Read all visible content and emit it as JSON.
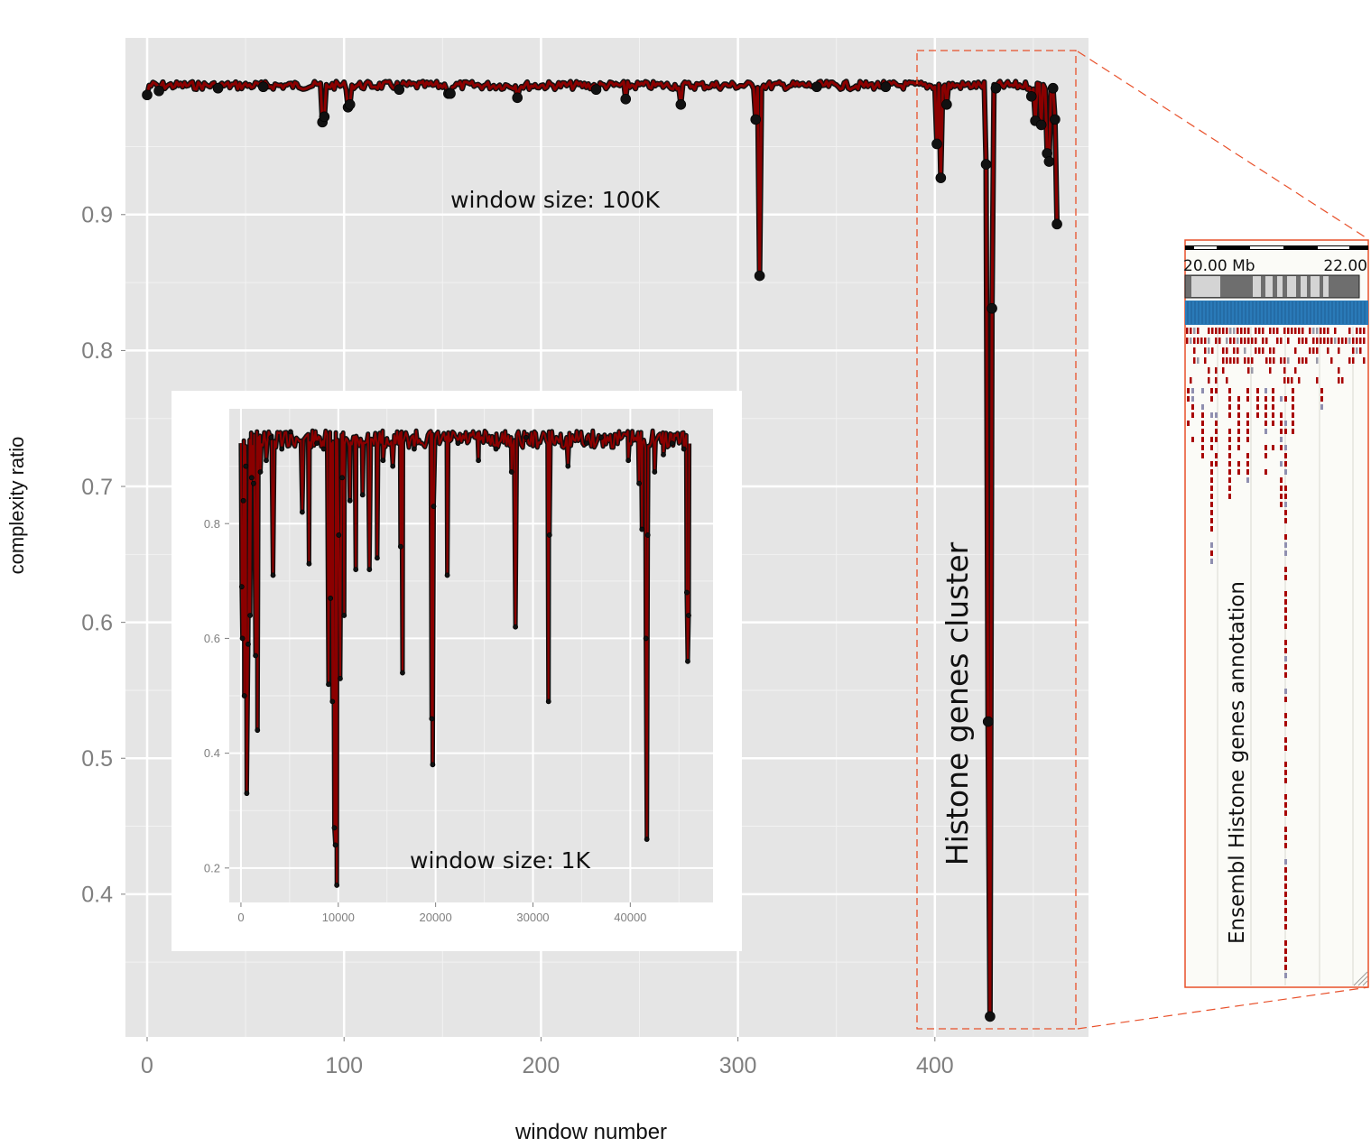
{
  "chart_data": [
    {
      "id": "main",
      "type": "line",
      "xlabel": "window number",
      "ylabel": "complexity ratio",
      "xlim": [
        -11,
        478
      ],
      "ylim": [
        0.295,
        1.03
      ],
      "xticks": [
        0,
        100,
        200,
        300,
        400
      ],
      "yticks": [
        0.4,
        0.5,
        0.6,
        0.7,
        0.8,
        0.9
      ],
      "ytick_labels": [
        "0.4",
        "0.5",
        "0.6",
        "0.7",
        "0.8",
        "0.9"
      ],
      "grid": true,
      "annotation": "window size: 100K",
      "line_color": "#8b0000",
      "point_color": "#111111",
      "baseline": 0.998,
      "dips": [
        {
          "x": 0,
          "y": 0.988
        },
        {
          "x": 6,
          "y": 0.991
        },
        {
          "x": 36,
          "y": 0.993
        },
        {
          "x": 59,
          "y": 0.994
        },
        {
          "x": 89,
          "y": 0.968
        },
        {
          "x": 90,
          "y": 0.972
        },
        {
          "x": 102,
          "y": 0.979
        },
        {
          "x": 103,
          "y": 0.981
        },
        {
          "x": 128,
          "y": 0.992
        },
        {
          "x": 153,
          "y": 0.989
        },
        {
          "x": 154,
          "y": 0.989
        },
        {
          "x": 188,
          "y": 0.986
        },
        {
          "x": 228,
          "y": 0.992
        },
        {
          "x": 243,
          "y": 0.985
        },
        {
          "x": 271,
          "y": 0.981
        },
        {
          "x": 309,
          "y": 0.97
        },
        {
          "x": 311,
          "y": 0.855
        },
        {
          "x": 340,
          "y": 0.994
        },
        {
          "x": 375,
          "y": 0.994
        },
        {
          "x": 401,
          "y": 0.952
        },
        {
          "x": 403,
          "y": 0.927
        },
        {
          "x": 406,
          "y": 0.981
        },
        {
          "x": 426,
          "y": 0.937
        },
        {
          "x": 427,
          "y": 0.527
        },
        {
          "x": 428,
          "y": 0.31
        },
        {
          "x": 429,
          "y": 0.831
        },
        {
          "x": 431,
          "y": 0.993
        },
        {
          "x": 449,
          "y": 0.987
        },
        {
          "x": 451,
          "y": 0.969
        },
        {
          "x": 454,
          "y": 0.966
        },
        {
          "x": 457,
          "y": 0.945
        },
        {
          "x": 458,
          "y": 0.939
        },
        {
          "x": 460,
          "y": 0.993
        },
        {
          "x": 461,
          "y": 0.97
        },
        {
          "x": 462,
          "y": 0.893
        }
      ],
      "last_x": 462
    },
    {
      "id": "inset",
      "type": "line",
      "xlim": [
        -1200,
        48500
      ],
      "ylim": [
        0.14,
        1.0
      ],
      "xticks": [
        0,
        10000,
        20000,
        30000,
        40000
      ],
      "yticks": [
        0.2,
        0.4,
        0.6,
        0.8
      ],
      "ytick_labels": [
        "0.2",
        "0.4",
        "0.6",
        "0.8"
      ],
      "grid": true,
      "annotation": "window size: 1K",
      "line_color": "#8b0000",
      "baseline": 0.962,
      "spikes": [
        {
          "x": 80,
          "y": 0.69
        },
        {
          "x": 150,
          "y": 0.6
        },
        {
          "x": 250,
          "y": 0.84
        },
        {
          "x": 350,
          "y": 0.5
        },
        {
          "x": 500,
          "y": 0.9
        },
        {
          "x": 600,
          "y": 0.33
        },
        {
          "x": 750,
          "y": 0.59
        },
        {
          "x": 950,
          "y": 0.64
        },
        {
          "x": 1100,
          "y": 0.88
        },
        {
          "x": 1300,
          "y": 0.87
        },
        {
          "x": 1500,
          "y": 0.57
        },
        {
          "x": 1700,
          "y": 0.44
        },
        {
          "x": 2000,
          "y": 0.89
        },
        {
          "x": 2600,
          "y": 0.91
        },
        {
          "x": 3100,
          "y": 0.95
        },
        {
          "x": 3300,
          "y": 0.71
        },
        {
          "x": 4200,
          "y": 0.93
        },
        {
          "x": 5100,
          "y": 0.96
        },
        {
          "x": 6300,
          "y": 0.82
        },
        {
          "x": 7000,
          "y": 0.73
        },
        {
          "x": 7800,
          "y": 0.94
        },
        {
          "x": 8500,
          "y": 0.93
        },
        {
          "x": 9000,
          "y": 0.52
        },
        {
          "x": 9200,
          "y": 0.67
        },
        {
          "x": 9400,
          "y": 0.49
        },
        {
          "x": 9600,
          "y": 0.27
        },
        {
          "x": 9700,
          "y": 0.24
        },
        {
          "x": 9850,
          "y": 0.17
        },
        {
          "x": 10050,
          "y": 0.78
        },
        {
          "x": 10200,
          "y": 0.53
        },
        {
          "x": 10400,
          "y": 0.88
        },
        {
          "x": 10600,
          "y": 0.64
        },
        {
          "x": 11200,
          "y": 0.84
        },
        {
          "x": 11800,
          "y": 0.72
        },
        {
          "x": 12500,
          "y": 0.85
        },
        {
          "x": 13200,
          "y": 0.72
        },
        {
          "x": 14000,
          "y": 0.74
        },
        {
          "x": 14600,
          "y": 0.91
        },
        {
          "x": 15600,
          "y": 0.9
        },
        {
          "x": 16400,
          "y": 0.76
        },
        {
          "x": 16600,
          "y": 0.54
        },
        {
          "x": 17800,
          "y": 0.93
        },
        {
          "x": 19600,
          "y": 0.46
        },
        {
          "x": 19700,
          "y": 0.38
        },
        {
          "x": 19800,
          "y": 0.83
        },
        {
          "x": 21200,
          "y": 0.71
        },
        {
          "x": 22300,
          "y": 0.94
        },
        {
          "x": 24400,
          "y": 0.91
        },
        {
          "x": 26200,
          "y": 0.93
        },
        {
          "x": 27800,
          "y": 0.89
        },
        {
          "x": 28200,
          "y": 0.62
        },
        {
          "x": 29300,
          "y": 0.95
        },
        {
          "x": 31600,
          "y": 0.49
        },
        {
          "x": 31700,
          "y": 0.78
        },
        {
          "x": 33600,
          "y": 0.9
        },
        {
          "x": 35500,
          "y": 0.94
        },
        {
          "x": 37000,
          "y": 0.95
        },
        {
          "x": 39800,
          "y": 0.91
        },
        {
          "x": 40900,
          "y": 0.87
        },
        {
          "x": 41200,
          "y": 0.79
        },
        {
          "x": 41600,
          "y": 0.6
        },
        {
          "x": 41700,
          "y": 0.25
        },
        {
          "x": 41800,
          "y": 0.78
        },
        {
          "x": 42500,
          "y": 0.89
        },
        {
          "x": 43400,
          "y": 0.92
        },
        {
          "x": 44300,
          "y": 0.94
        },
        {
          "x": 45500,
          "y": 0.93
        },
        {
          "x": 45800,
          "y": 0.68
        },
        {
          "x": 45900,
          "y": 0.56
        },
        {
          "x": 46000,
          "y": 0.64
        }
      ],
      "last_x": 46100
    }
  ],
  "annotations": {
    "cluster_label": "Histone genes cluster",
    "panel_label": "Ensembl Histone genes annotation"
  },
  "browser_panel": {
    "scale_left": "20.00 Mb",
    "scale_right": "22.00",
    "border_color": "#e8502a",
    "band_color": "#2a7ab8",
    "feature_color": "#a80000"
  }
}
